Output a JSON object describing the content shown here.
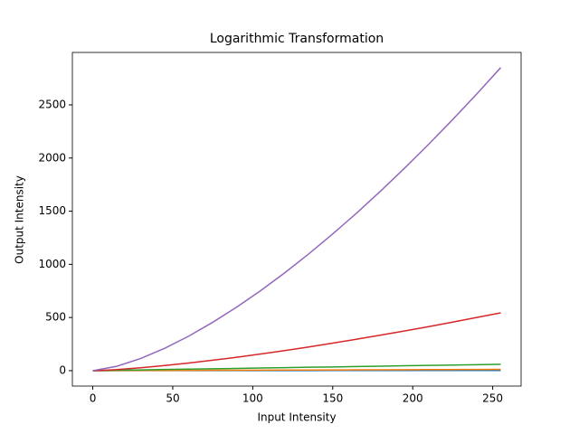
{
  "chart_data": {
    "type": "line",
    "title": "Logarithmic Transformation",
    "x_label": "Input Intensity",
    "y_label": "Output Intensity",
    "x": [
      0,
      15,
      30,
      45,
      60,
      75,
      90,
      105,
      120,
      135,
      150,
      165,
      180,
      195,
      210,
      225,
      240,
      255
    ],
    "series": [
      {
        "color": "#1f77b4",
        "values": [
          0,
          0.2,
          0.3,
          0.4,
          0.5,
          0.6,
          0.7,
          0.8,
          0.9,
          1.0,
          1.2,
          1.3,
          1.4,
          1.5,
          1.6,
          1.8,
          1.9,
          2
        ]
      },
      {
        "color": "#ff7f0e",
        "values": [
          0,
          0.8,
          1.5,
          2.2,
          2.9,
          3.6,
          4.3,
          5,
          5.7,
          6.4,
          7.1,
          7.8,
          8.5,
          9.2,
          9.9,
          10.6,
          11.3,
          12
        ]
      },
      {
        "color": "#2ca02c",
        "values": [
          0,
          4,
          7,
          11,
          14,
          18,
          21,
          25,
          28,
          32,
          35,
          39,
          42,
          46,
          49,
          53,
          56,
          60
        ]
      },
      {
        "color": "#d62728",
        "values": [
          0,
          10,
          27,
          48,
          72,
          98,
          126,
          157,
          189,
          223,
          259,
          296,
          334,
          374,
          414,
          457,
          500,
          544
        ]
      },
      {
        "color": "#9467bd",
        "values": [
          0,
          41,
          115,
          211,
          325,
          455,
          598,
          753,
          920,
          1098,
          1286,
          1483,
          1690,
          1906,
          2130,
          2362,
          2602,
          2850
        ]
      }
    ],
    "xlim": [
      -12.75,
      267.75
    ],
    "xticks": [
      0,
      50,
      100,
      150,
      200,
      250
    ],
    "ylim": [
      -145,
      2993
    ],
    "yticks": [
      0,
      500,
      1000,
      1500,
      2000,
      2500
    ]
  }
}
